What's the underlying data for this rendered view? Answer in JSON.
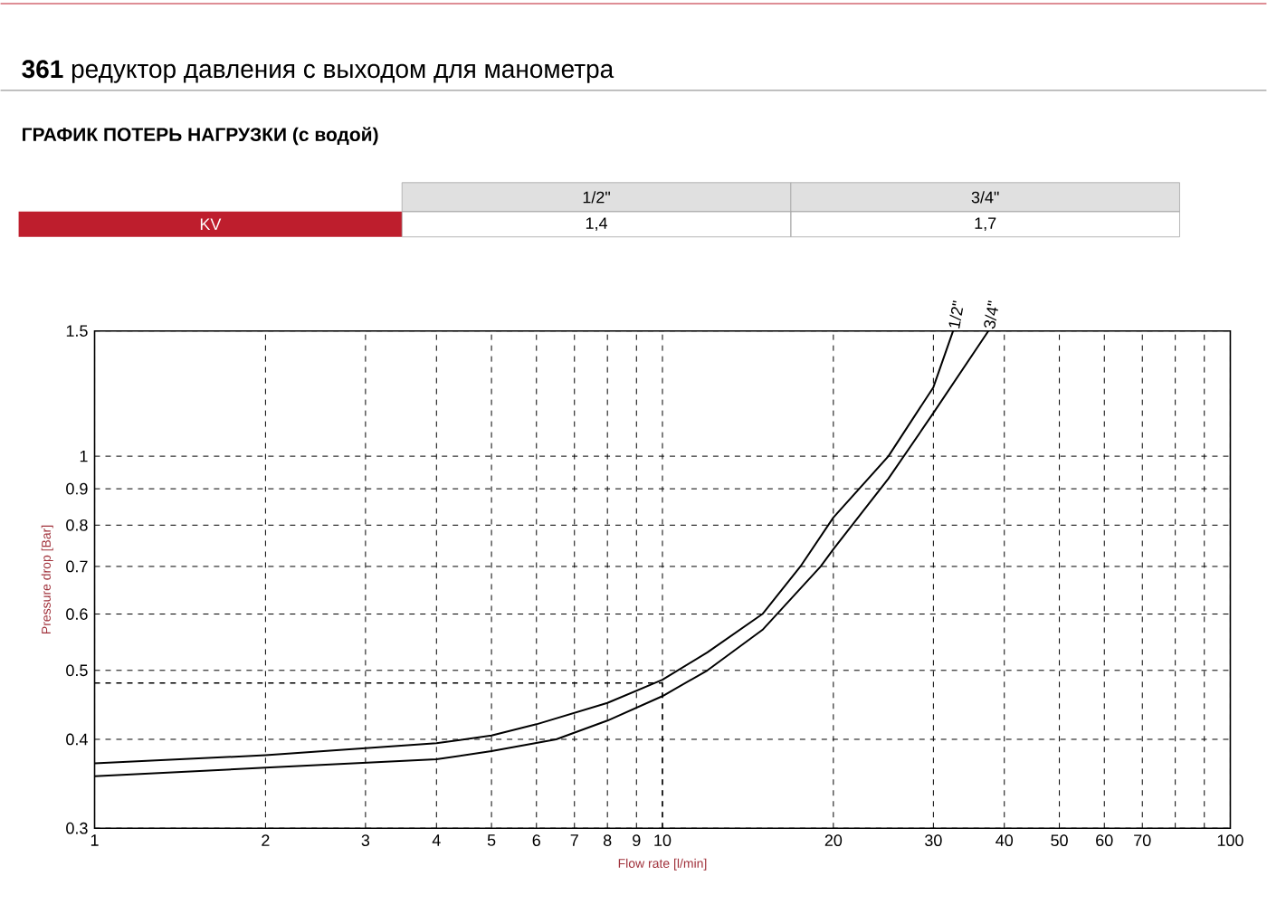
{
  "chart_data": {
    "type": "line",
    "title": "**361** редуктор давления с выходом для манометра",
    "subtitle": "ГРАФИК ПОТЕРЬ НАГРУЗКИ (с водой)",
    "annotations": [
      "KV",
      "1/2\"",
      "3/4\"",
      "1,4",
      "1,7"
    ],
    "xlabel": "Flow rate [l/min]",
    "ylabel": "Pressure drop [Bar]",
    "log": "xy",
    "grid": true,
    "legend": false,
    "marker": "none",
    "line_style": "solid",
    "xlim": [
      1,
      100
    ],
    "ylim": [
      0.3,
      1.5
    ],
    "xticks": [
      1,
      2,
      3,
      4,
      5,
      6,
      7,
      8,
      9,
      10,
      20,
      30,
      40,
      50,
      60,
      70,
      {
        "value": 80,
        "label": null
      },
      {
        "value": 90,
        "label": null
      },
      100
    ],
    "yticks": [
      0.3,
      0.4,
      0.5,
      0.6,
      0.7,
      0.8,
      0.9,
      1,
      1.5
    ],
    "series": [
      {
        "name": "1/2\"",
        "color": "#000000",
        "x": [
          1,
          2,
          4,
          5,
          6,
          8,
          10,
          12,
          15,
          17.5,
          20,
          25,
          30,
          32.5
        ],
        "values": [
          0.37,
          0.38,
          0.395,
          0.405,
          0.42,
          0.45,
          0.485,
          0.53,
          0.6,
          0.7,
          0.82,
          1.0,
          1.25,
          1.5
        ]
      },
      {
        "name": "3/4\"",
        "color": "#000000",
        "x": [
          1,
          2,
          4,
          5,
          6.5,
          8,
          10,
          12,
          15,
          19,
          20,
          25,
          30,
          37.5
        ],
        "values": [
          0.355,
          0.365,
          0.375,
          0.385,
          0.4,
          0.425,
          0.46,
          0.5,
          0.57,
          0.7,
          0.74,
          0.93,
          1.15,
          1.5
        ]
      }
    ],
    "ref_lines": [
      {
        "axis": "y",
        "value": 0.48,
        "line_style": "dashed"
      },
      {
        "axis": "x",
        "value": 10,
        "line_style": "dashed"
      }
    ]
  }
}
